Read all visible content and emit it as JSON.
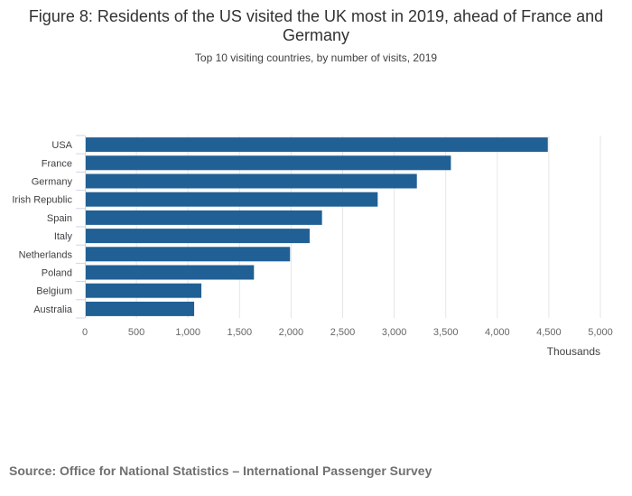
{
  "title": "Figure 8: Residents of the US visited the UK most in 2019, ahead of France and Germany",
  "subtitle": "Top 10 visiting countries, by number of visits, 2019",
  "source": "Source: Office for National Statistics – International Passenger Survey",
  "colors": {
    "bar": "#206095",
    "grid": "#e6e6e6",
    "axis": "#ccd6eb"
  },
  "chart_data": {
    "type": "bar",
    "orientation": "horizontal",
    "categories": [
      "USA",
      "France",
      "Germany",
      "Irish Republic",
      "Spain",
      "Italy",
      "Netherlands",
      "Poland",
      "Belgium",
      "Australia"
    ],
    "values": [
      4490,
      3550,
      3220,
      2840,
      2300,
      2180,
      1990,
      1640,
      1130,
      1060
    ],
    "xlabel": "Thousands",
    "ylabel": "",
    "xlim": [
      0,
      5000
    ],
    "xticks": [
      0,
      500,
      1000,
      1500,
      2000,
      2500,
      3000,
      3500,
      4000,
      4500,
      5000
    ],
    "xtick_labels": [
      "0",
      "500",
      "1,000",
      "1,500",
      "2,000",
      "2,500",
      "3,000",
      "3,500",
      "4,000",
      "4,500",
      "5,000"
    ],
    "grid": true,
    "legend": "none"
  }
}
